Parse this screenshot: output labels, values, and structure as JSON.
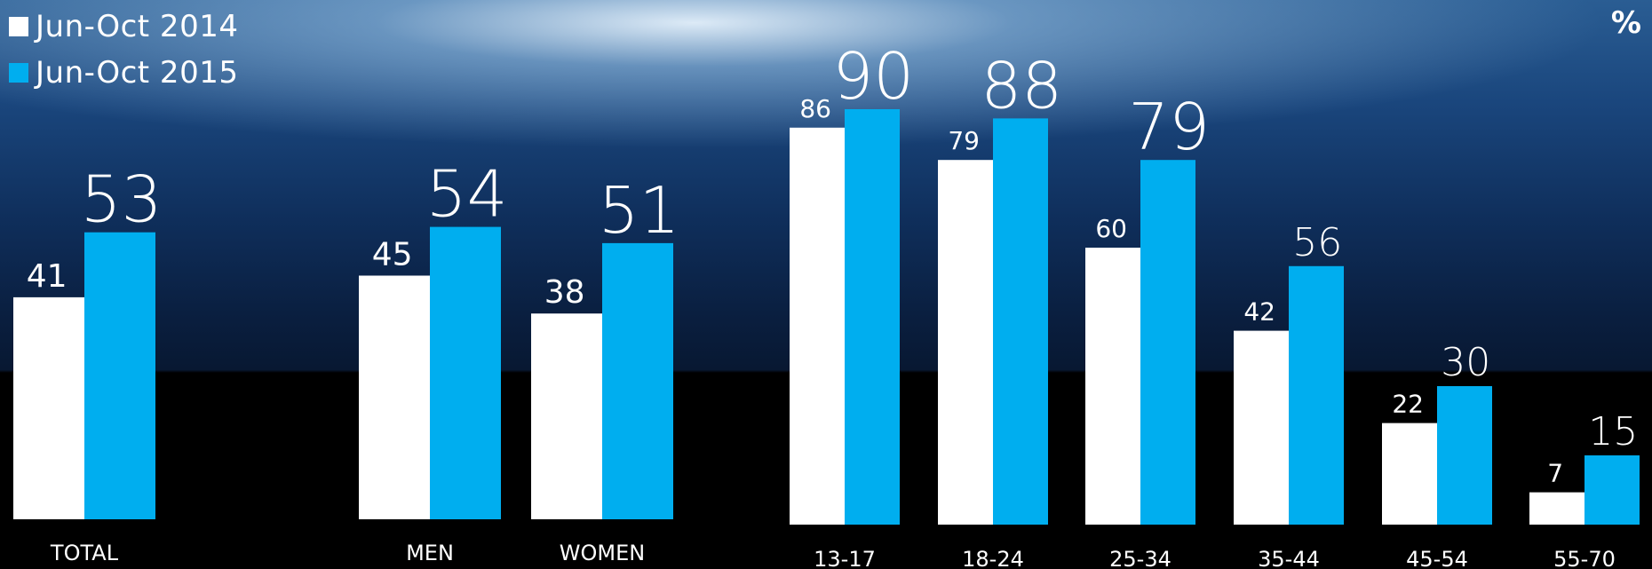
{
  "chart_data": {
    "type": "bar",
    "unit_label": "%",
    "categories": [
      "TOTAL",
      "MEN",
      "WOMEN",
      "13-17",
      "18-24",
      "25-34",
      "35-44",
      "45-54",
      "55-70"
    ],
    "series": [
      {
        "name": "Jun-Oct 2014",
        "values": [
          41,
          45,
          38,
          86,
          79,
          60,
          42,
          22,
          7
        ]
      },
      {
        "name": "Jun-Oct 2015",
        "values": [
          53,
          54,
          51,
          90,
          88,
          79,
          56,
          30,
          15
        ]
      }
    ],
    "colors": {
      "series_2014": "#ffffff",
      "series_2015": "#00aeef",
      "text": "#ffffff"
    },
    "legend_position": "top-left",
    "grid": false
  }
}
